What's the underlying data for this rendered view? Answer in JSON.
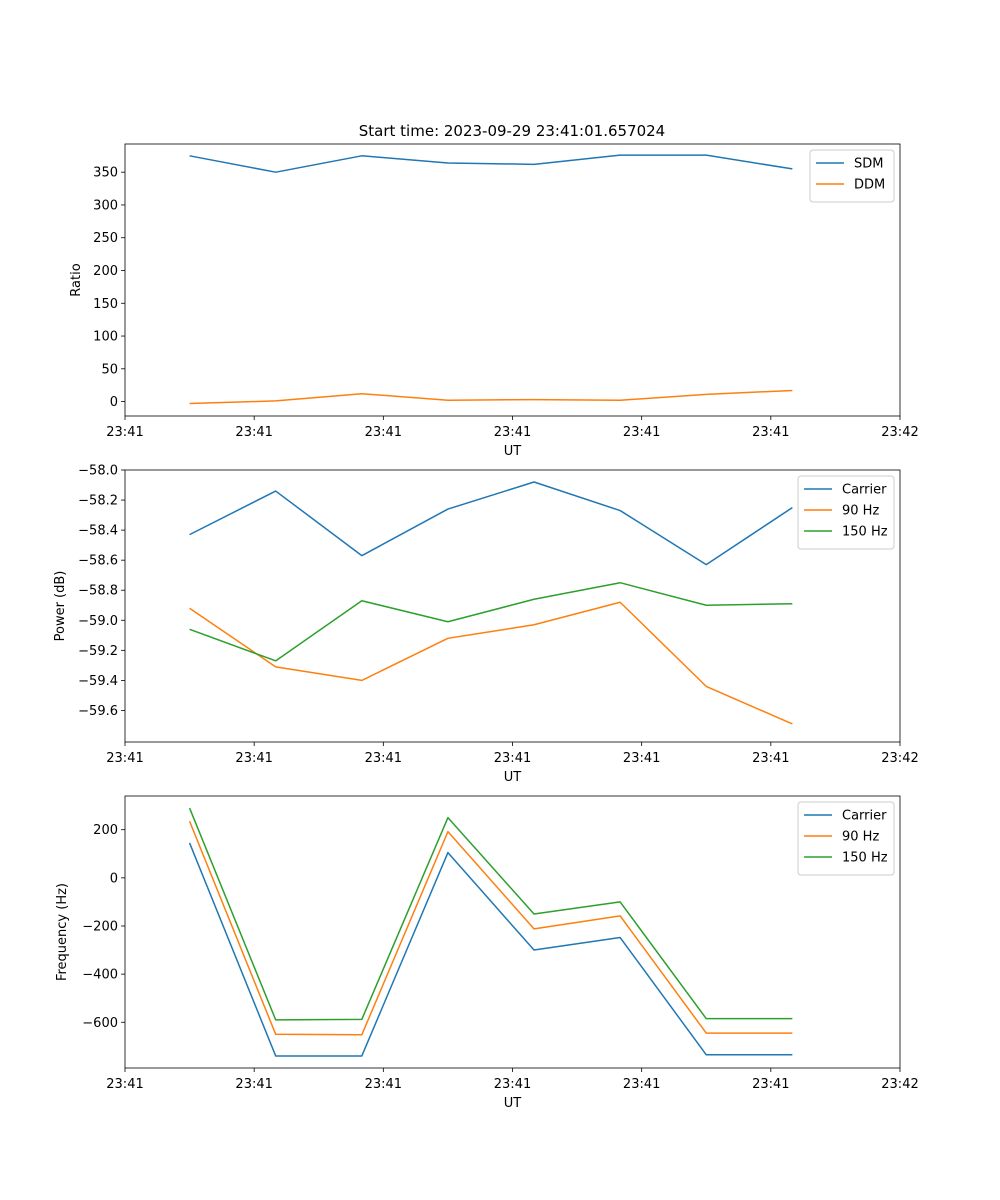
{
  "figure": {
    "title": "Start time: 2023-09-29 23:41:01.657024"
  },
  "chart_data": [
    {
      "type": "line",
      "title": "Start time: 2023-09-29 23:41:01.657024",
      "xlabel": "UT",
      "ylabel": "Ratio",
      "x": [
        0,
        1,
        2,
        3,
        4,
        5,
        6,
        7
      ],
      "xlim": [
        -0.75,
        8.25
      ],
      "xticks": [
        -0.75,
        0.75,
        2.25,
        3.75,
        5.25,
        6.75,
        8.25
      ],
      "xtick_labels": [
        "23:41",
        "23:41",
        "23:41",
        "23:41",
        "23:41",
        "23:41",
        "23:42"
      ],
      "ylim": [
        -22,
        393
      ],
      "yticks": [
        0,
        50,
        100,
        150,
        200,
        250,
        300,
        350
      ],
      "ytick_labels": [
        "0",
        "50",
        "100",
        "150",
        "200",
        "250",
        "300",
        "350"
      ],
      "legend": "top-right",
      "series": [
        {
          "name": "SDM",
          "color": "#1f77b4",
          "values": [
            375,
            350,
            375,
            364,
            362,
            376,
            376,
            355
          ]
        },
        {
          "name": "DDM",
          "color": "#ff7f0e",
          "values": [
            -3,
            1,
            12,
            2,
            3,
            2,
            11,
            17
          ]
        }
      ]
    },
    {
      "type": "line",
      "xlabel": "UT",
      "ylabel": "Power (dB)",
      "x": [
        0,
        1,
        2,
        3,
        4,
        5,
        6,
        7
      ],
      "xlim": [
        -0.75,
        8.25
      ],
      "xticks": [
        -0.75,
        0.75,
        2.25,
        3.75,
        5.25,
        6.75,
        8.25
      ],
      "xtick_labels": [
        "23:41",
        "23:41",
        "23:41",
        "23:41",
        "23:41",
        "23:41",
        "23:42"
      ],
      "ylim": [
        -59.81,
        -58.0
      ],
      "yticks": [
        -59.6,
        -59.4,
        -59.2,
        -59.0,
        -58.8,
        -58.6,
        -58.4,
        -58.2,
        -58.0
      ],
      "ytick_labels": [
        "−59.6",
        "−59.4",
        "−59.2",
        "−59.0",
        "−58.8",
        "−58.6",
        "−58.4",
        "−58.2",
        "−58.0"
      ],
      "legend": "top-right",
      "series": [
        {
          "name": "Carrier",
          "color": "#1f77b4",
          "values": [
            -58.43,
            -58.14,
            -58.57,
            -58.26,
            -58.08,
            -58.27,
            -58.63,
            -58.25
          ]
        },
        {
          "name": "90 Hz",
          "color": "#ff7f0e",
          "values": [
            -58.92,
            -59.31,
            -59.4,
            -59.12,
            -59.03,
            -58.88,
            -59.44,
            -59.69
          ]
        },
        {
          "name": "150 Hz",
          "color": "#2ca02c",
          "values": [
            -59.06,
            -59.27,
            -58.87,
            -59.01,
            -58.86,
            -58.75,
            -58.9,
            -58.89
          ]
        }
      ]
    },
    {
      "type": "line",
      "xlabel": "UT",
      "ylabel": "Frequency (Hz)",
      "x": [
        0,
        1,
        2,
        3,
        4,
        5,
        6,
        7
      ],
      "xlim": [
        -0.75,
        8.25
      ],
      "xticks": [
        -0.75,
        0.75,
        2.25,
        3.75,
        5.25,
        6.75,
        8.25
      ],
      "xtick_labels": [
        "23:41",
        "23:41",
        "23:41",
        "23:41",
        "23:41",
        "23:41",
        "23:42"
      ],
      "ylim": [
        -790,
        340
      ],
      "yticks": [
        -600,
        -400,
        -200,
        0,
        200
      ],
      "ytick_labels": [
        "−600",
        "−400",
        "−200",
        "0",
        "200"
      ],
      "legend": "top-right",
      "series": [
        {
          "name": "Carrier",
          "color": "#1f77b4",
          "values": [
            145,
            -740,
            -740,
            105,
            -300,
            -248,
            -735,
            -735
          ]
        },
        {
          "name": "90 Hz",
          "color": "#ff7f0e",
          "values": [
            235,
            -650,
            -652,
            192,
            -212,
            -158,
            -645,
            -645
          ]
        },
        {
          "name": "150 Hz",
          "color": "#2ca02c",
          "values": [
            290,
            -590,
            -588,
            250,
            -150,
            -100,
            -585,
            -585
          ]
        }
      ]
    }
  ]
}
